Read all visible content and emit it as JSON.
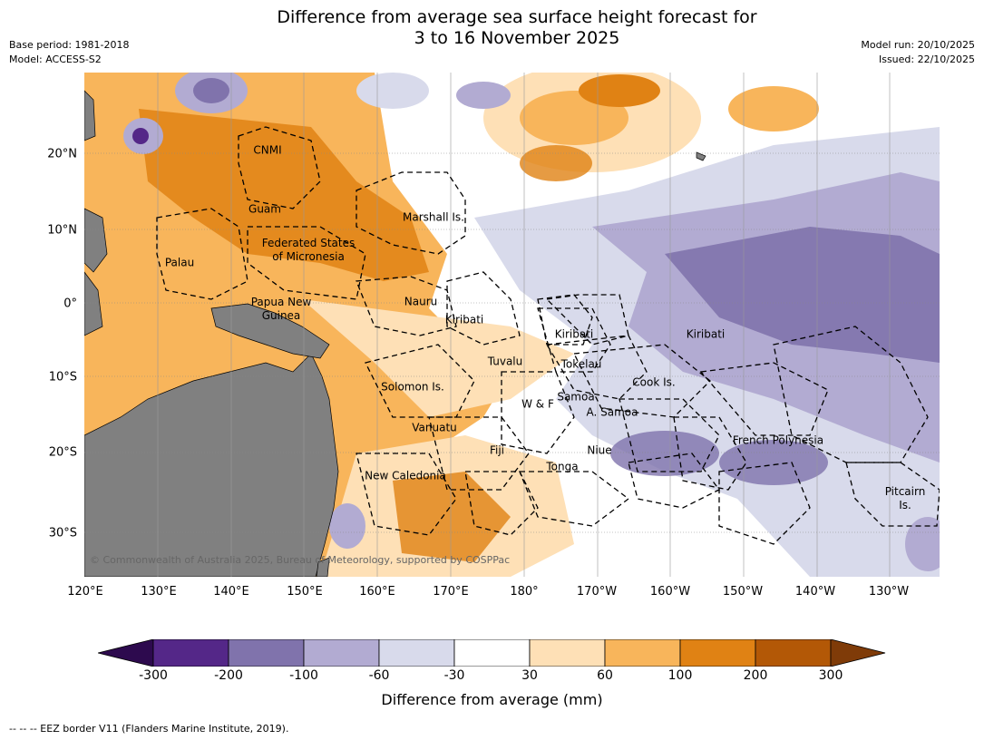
{
  "title": {
    "line1": "Difference from average sea surface height forecast for",
    "line2": "3 to 16 November 2025"
  },
  "meta_left": {
    "base_period": "Base period: 1981-2018",
    "model": "Model: ACCESS-S2"
  },
  "meta_right": {
    "model_run": "Model run: 20/10/2025",
    "issued": "Issued: 22/10/2025"
  },
  "axes": {
    "lon_labels": [
      "120°E",
      "130°E",
      "140°E",
      "150°E",
      "160°E",
      "170°E",
      "180°",
      "170°W",
      "160°W",
      "150°W",
      "140°W",
      "130°W"
    ],
    "lat_labels": [
      "20°N",
      "10°N",
      "0°",
      "10°S",
      "20°S",
      "30°S"
    ]
  },
  "places": [
    {
      "label": "CNMI"
    },
    {
      "label": "Guam"
    },
    {
      "label": "Marshall Is."
    },
    {
      "label": "Federated States\nof Micronesia"
    },
    {
      "label": "Palau"
    },
    {
      "label": "Nauru"
    },
    {
      "label": "Papua New\nGuinea"
    },
    {
      "label": "Kiribati"
    },
    {
      "label": "Kiribati"
    },
    {
      "label": "Kiribati"
    },
    {
      "label": "Tuvalu"
    },
    {
      "label": "Tokelau"
    },
    {
      "label": "Solomon Is."
    },
    {
      "label": "Cook Is."
    },
    {
      "label": "Samoa"
    },
    {
      "label": "W & F"
    },
    {
      "label": "A. Samoa"
    },
    {
      "label": "Vanuatu"
    },
    {
      "label": "Fiji"
    },
    {
      "label": "Niue"
    },
    {
      "label": "French Polynesia"
    },
    {
      "label": "Tonga"
    },
    {
      "label": "New Caledonia"
    },
    {
      "label": "Pitcairn\nIs."
    }
  ],
  "copyright": "© Commonwealth of Australia 2025, Bureau of Meteorology, supported by COSPPac",
  "colorbar": {
    "ticks": [
      "-300",
      "-200",
      "-100",
      "-60",
      "-30",
      "30",
      "60",
      "100",
      "200",
      "300"
    ],
    "colors": [
      "#2d0a4e",
      "#542788",
      "#8073ac",
      "#b2abd2",
      "#d8daeb",
      "#ffffff",
      "#fee0b6",
      "#f8b55b",
      "#e08214",
      "#b35806",
      "#7f3b08"
    ],
    "label": "Difference from average (mm)"
  },
  "footnote": "--  --  -- EEZ border V11 (Flanders Marine Institute, 2019)."
}
